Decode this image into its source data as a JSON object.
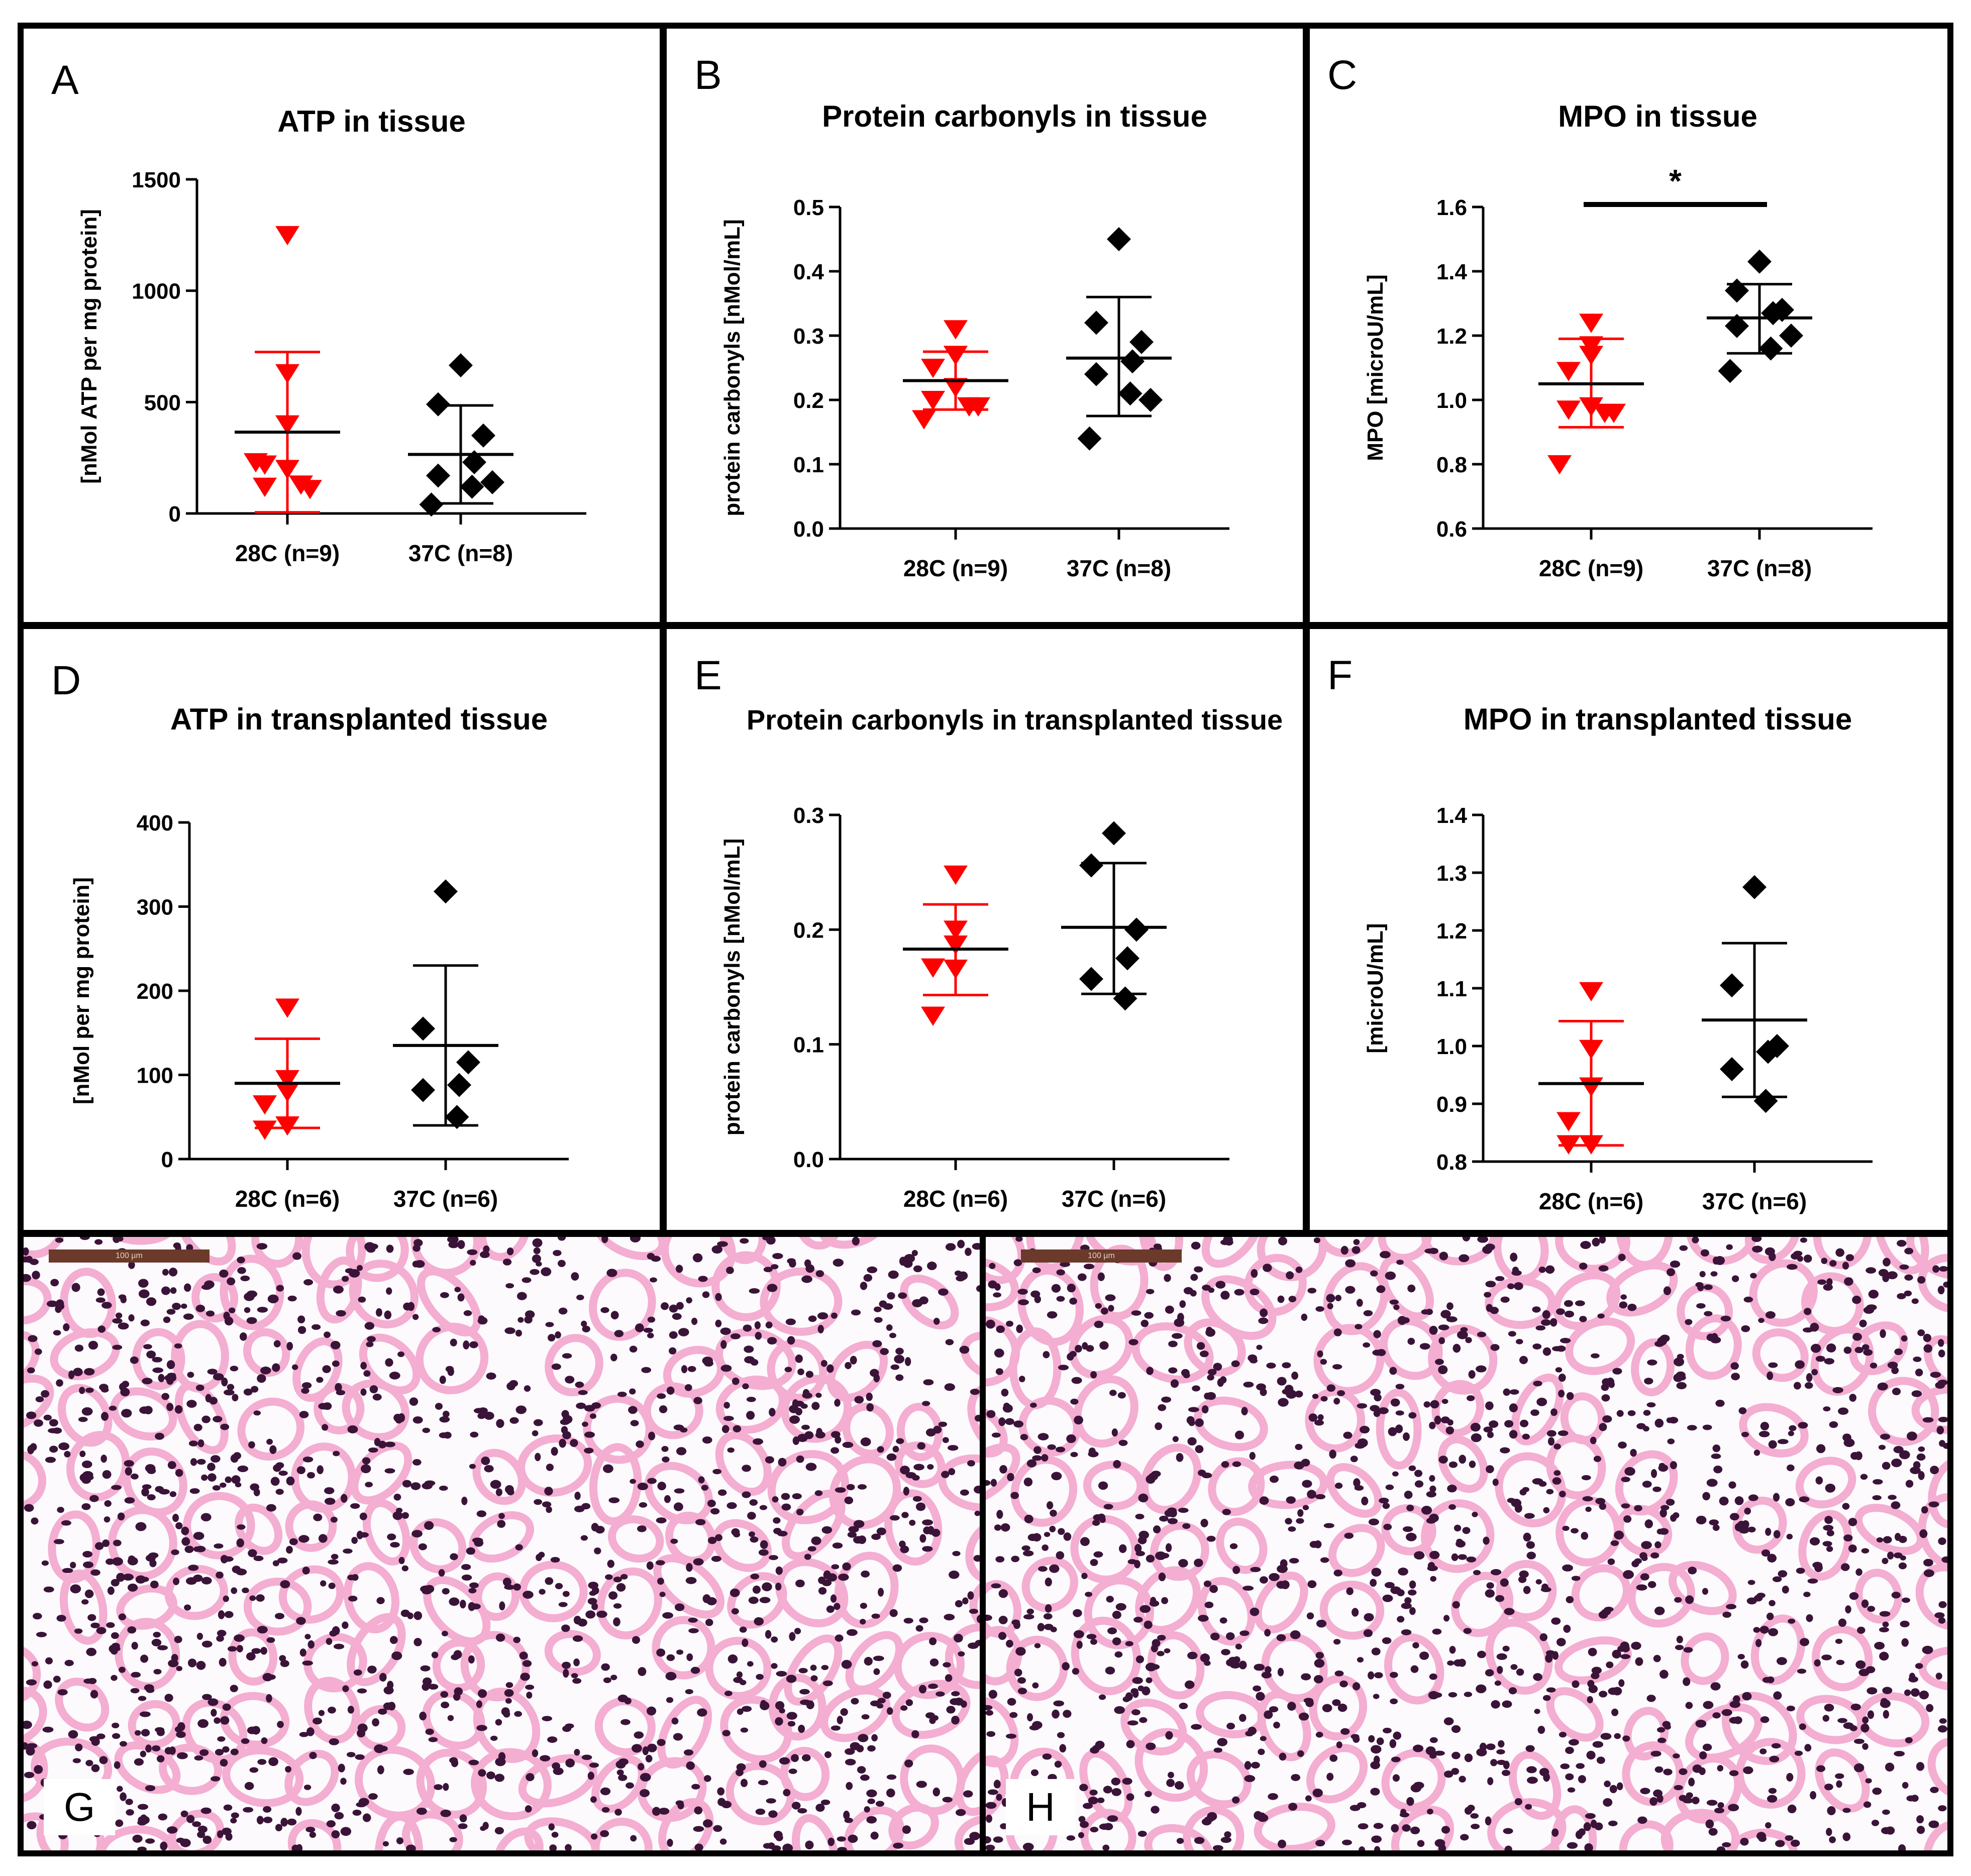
{
  "colors": {
    "group1": "#ff0000",
    "group2": "#000000",
    "tissue_pink": "#f3aed1",
    "tissue_nuclei": "#3a1438",
    "scalebar": "#6b3a2a"
  },
  "chart_data": [
    {
      "panel": "A",
      "type": "scatter",
      "title": "ATP in tissue",
      "ylabel": "[nMol ATP per mg protein]",
      "ylim": [
        0,
        1500
      ],
      "yticks": [
        0,
        500,
        1000,
        1500
      ],
      "categories": [
        "28C (n=9)",
        "37C (n=8)"
      ],
      "series": [
        {
          "category": "28C (n=9)",
          "marker": "triangle-down",
          "color": "#ff0000",
          "values": [
            1250,
            630,
            400,
            220,
            200,
            120,
            130,
            110,
            230
          ],
          "mean": 365,
          "sd_low": 5,
          "sd_high": 725
        },
        {
          "category": "37C (n=8)",
          "marker": "diamond",
          "color": "#000000",
          "values": [
            665,
            490,
            350,
            230,
            170,
            120,
            140,
            40
          ],
          "mean": 265,
          "sd_low": 45,
          "sd_high": 485
        }
      ]
    },
    {
      "panel": "B",
      "type": "scatter",
      "title": "Protein carbonyls in tissue",
      "ylabel": "protein carbonyls [nMol/mL]",
      "ylim": [
        0,
        0.5
      ],
      "yticks": [
        "0.0",
        "0.1",
        "0.2",
        "0.3",
        "0.4",
        "0.5"
      ],
      "categories": [
        "28C (n=9)",
        "37C (n=8)"
      ],
      "series": [
        {
          "category": "28C (n=9)",
          "marker": "triangle-down",
          "color": "#ff0000",
          "values": [
            0.31,
            0.27,
            0.27,
            0.25,
            0.22,
            0.2,
            0.19,
            0.19,
            0.17
          ],
          "mean": 0.23,
          "sd_low": 0.185,
          "sd_high": 0.275
        },
        {
          "category": "37C (n=8)",
          "marker": "diamond",
          "color": "#000000",
          "values": [
            0.45,
            0.32,
            0.29,
            0.26,
            0.24,
            0.21,
            0.2,
            0.14
          ],
          "mean": 0.265,
          "sd_low": 0.175,
          "sd_high": 0.36
        }
      ]
    },
    {
      "panel": "C",
      "type": "scatter",
      "title": "MPO in tissue",
      "ylabel": "MPO [microU/mL]",
      "ylim": [
        0.6,
        1.6
      ],
      "yticks": [
        "0.6",
        "0.8",
        "1.0",
        "1.2",
        "1.4",
        "1.6"
      ],
      "categories": [
        "28C (n=9)",
        "37C (n=8)"
      ],
      "annotation": "*",
      "series": [
        {
          "category": "28C (n=9)",
          "marker": "triangle-down",
          "color": "#ff0000",
          "values": [
            1.24,
            1.17,
            1.14,
            1.09,
            0.98,
            0.97,
            0.96,
            0.96,
            0.8
          ],
          "mean": 1.05,
          "sd_low": 0.915,
          "sd_high": 1.19
        },
        {
          "category": "37C (n=8)",
          "marker": "diamond",
          "color": "#000000",
          "values": [
            1.43,
            1.34,
            1.28,
            1.27,
            1.23,
            1.16,
            1.2,
            1.09
          ],
          "mean": 1.255,
          "sd_low": 1.145,
          "sd_high": 1.36
        }
      ]
    },
    {
      "panel": "D",
      "type": "scatter",
      "title": "ATP in transplanted tissue",
      "ylabel": "[nMol per mg protein]",
      "ylim": [
        0,
        400
      ],
      "yticks": [
        0,
        100,
        200,
        300,
        400
      ],
      "categories": [
        "28C (n=6)",
        "37C (n=6)"
      ],
      "series": [
        {
          "category": "28C (n=6)",
          "marker": "triangle-down",
          "color": "#ff0000",
          "values": [
            180,
            95,
            80,
            65,
            40,
            35
          ],
          "mean": 90,
          "sd_low": 37,
          "sd_high": 143
        },
        {
          "category": "37C (n=6)",
          "marker": "diamond",
          "color": "#000000",
          "values": [
            318,
            155,
            115,
            88,
            82,
            50
          ],
          "mean": 135,
          "sd_low": 40,
          "sd_high": 230
        }
      ]
    },
    {
      "panel": "E",
      "type": "scatter",
      "title": "Protein carbonyls in transplanted tissue",
      "ylabel": "protein carbonyls [nMol/mL]",
      "ylim": [
        0,
        0.3
      ],
      "yticks": [
        "0.0",
        "0.1",
        "0.2",
        "0.3"
      ],
      "categories": [
        "28C (n=6)",
        "37C (n=6)"
      ],
      "series": [
        {
          "category": "28C (n=6)",
          "marker": "triangle-down",
          "color": "#ff0000",
          "values": [
            0.248,
            0.2,
            0.187,
            0.167,
            0.166,
            0.125
          ],
          "mean": 0.183,
          "sd_low": 0.143,
          "sd_high": 0.222
        },
        {
          "category": "37C (n=6)",
          "marker": "diamond",
          "color": "#000000",
          "values": [
            0.284,
            0.256,
            0.2,
            0.175,
            0.157,
            0.14
          ],
          "mean": 0.202,
          "sd_low": 0.144,
          "sd_high": 0.258
        }
      ]
    },
    {
      "panel": "F",
      "type": "scatter",
      "title": "MPO in transplanted tissue",
      "ylabel": "[microU/mL]",
      "ylim": [
        0.8,
        1.4
      ],
      "yticks": [
        "0.8",
        "0.9",
        "1.0",
        "1.1",
        "1.2",
        "1.3",
        "1.4"
      ],
      "categories": [
        "28C (n=6)",
        "37C (n=6)"
      ],
      "series": [
        {
          "category": "28C (n=6)",
          "marker": "triangle-down",
          "color": "#ff0000",
          "values": [
            1.095,
            0.995,
            0.93,
            0.87,
            0.83,
            0.83
          ],
          "mean": 0.935,
          "sd_low": 0.828,
          "sd_high": 1.043
        },
        {
          "category": "37C (n=6)",
          "marker": "diamond",
          "color": "#000000",
          "values": [
            1.275,
            1.105,
            1.0,
            0.99,
            0.96,
            0.905
          ],
          "mean": 1.045,
          "sd_low": 0.912,
          "sd_high": 1.178
        }
      ]
    }
  ],
  "histology": [
    {
      "panel": "G",
      "scalebar_label": "100 µm"
    },
    {
      "panel": "H",
      "scalebar_label": "100 µm"
    }
  ]
}
